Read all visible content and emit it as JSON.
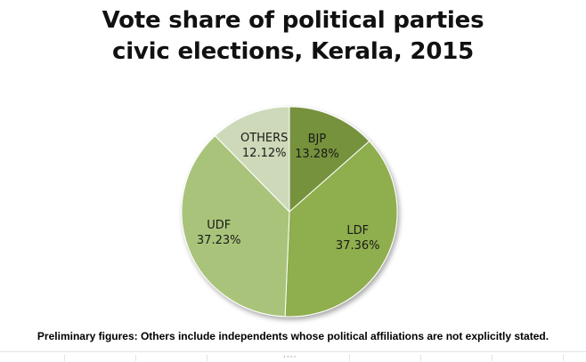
{
  "chart_data": {
    "type": "pie",
    "title_lines": [
      "Vote share of political parties",
      "civic elections, Kerala, 2015"
    ],
    "slices": [
      {
        "label": "BJP",
        "value": 13.28,
        "display": "13.28%",
        "color": "#76923c"
      },
      {
        "label": "LDF",
        "value": 37.36,
        "display": "37.36%",
        "color": "#8fae4e"
      },
      {
        "label": "UDF",
        "value": 37.23,
        "display": "37.23%",
        "color": "#a9c47a"
      },
      {
        "label": "OTHERS",
        "value": 12.12,
        "display": "12.12%",
        "color": "#cdd9b8"
      }
    ],
    "start_angle_deg": 0,
    "direction": "clockwise",
    "legend": "none",
    "note": "Preliminary figures: Others include independents whose political affiliations are not explicitly stated."
  }
}
